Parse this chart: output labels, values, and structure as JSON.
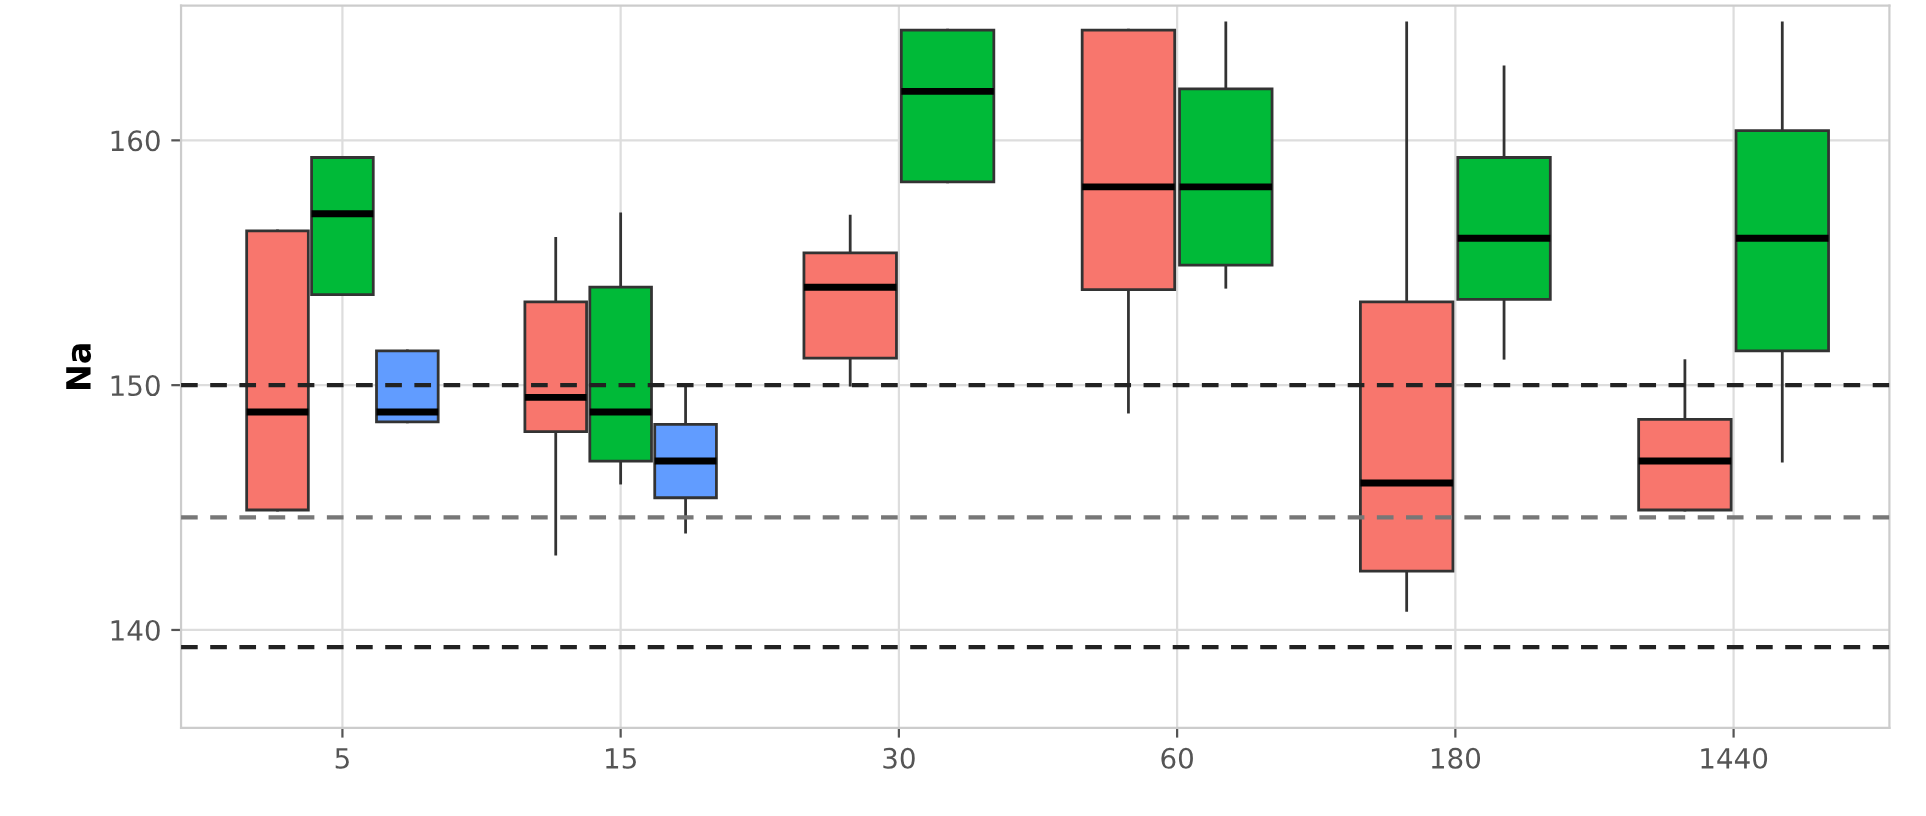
{
  "chart_data": {
    "type": "box",
    "ylabel": "Na",
    "categories": [
      "5",
      "15",
      "30",
      "60",
      "180",
      "1440"
    ],
    "series": [
      {
        "color": "#f8766d",
        "boxes": [
          {
            "low": 144.9,
            "q1": 144.9,
            "median": 148.9,
            "q3": 156.3,
            "high": 156.3
          },
          {
            "low": 143.1,
            "q1": 148.1,
            "median": 149.5,
            "q3": 153.4,
            "high": 156.0
          },
          {
            "low": 150.0,
            "q1": 151.1,
            "median": 154.0,
            "q3": 155.4,
            "high": 156.9
          },
          {
            "low": 148.9,
            "q1": 153.9,
            "median": 158.1,
            "q3": 164.5,
            "high": 164.5
          },
          {
            "low": 140.8,
            "q1": 142.4,
            "median": 146.0,
            "q3": 153.4,
            "high": 164.8
          },
          {
            "low": 144.9,
            "q1": 144.9,
            "median": 146.9,
            "q3": 148.6,
            "high": 151.0
          }
        ]
      },
      {
        "color": "#00ba38",
        "boxes": [
          {
            "low": 153.7,
            "q1": 153.7,
            "median": 157.0,
            "q3": 159.3,
            "high": 159.3
          },
          {
            "low": 146.0,
            "q1": 146.9,
            "median": 148.9,
            "q3": 154.0,
            "high": 157.0
          },
          {
            "low": 158.3,
            "q1": 158.3,
            "median": 162.0,
            "q3": 164.5,
            "high": 164.5
          },
          {
            "low": 154.0,
            "q1": 154.9,
            "median": 158.1,
            "q3": 162.1,
            "high": 164.8
          },
          {
            "low": 151.1,
            "q1": 153.5,
            "median": 156.0,
            "q3": 159.3,
            "high": 163.0
          },
          {
            "low": 146.9,
            "q1": 151.4,
            "median": 156.0,
            "q3": 160.4,
            "high": 164.8
          }
        ]
      },
      {
        "color": "#619cff",
        "boxes": [
          {
            "low": 148.5,
            "q1": 148.5,
            "median": 148.9,
            "q3": 151.4,
            "high": 151.4
          },
          {
            "low": 144.0,
            "q1": 145.4,
            "median": 146.9,
            "q3": 148.4,
            "high": 150.0
          },
          null,
          null,
          null,
          null
        ]
      }
    ],
    "ylim": [
      136,
      165.5
    ],
    "yticks": [
      140,
      150,
      160
    ],
    "grid": true,
    "ref_lines": [
      {
        "axis": "y",
        "value": 150,
        "color": "#222222",
        "line_style": "dashed"
      },
      {
        "axis": "y",
        "value": 144.6,
        "color": "#777777",
        "line_style": "dashed"
      },
      {
        "axis": "y",
        "value": 139.3,
        "color": "#222222",
        "line_style": "dashed"
      }
    ]
  }
}
